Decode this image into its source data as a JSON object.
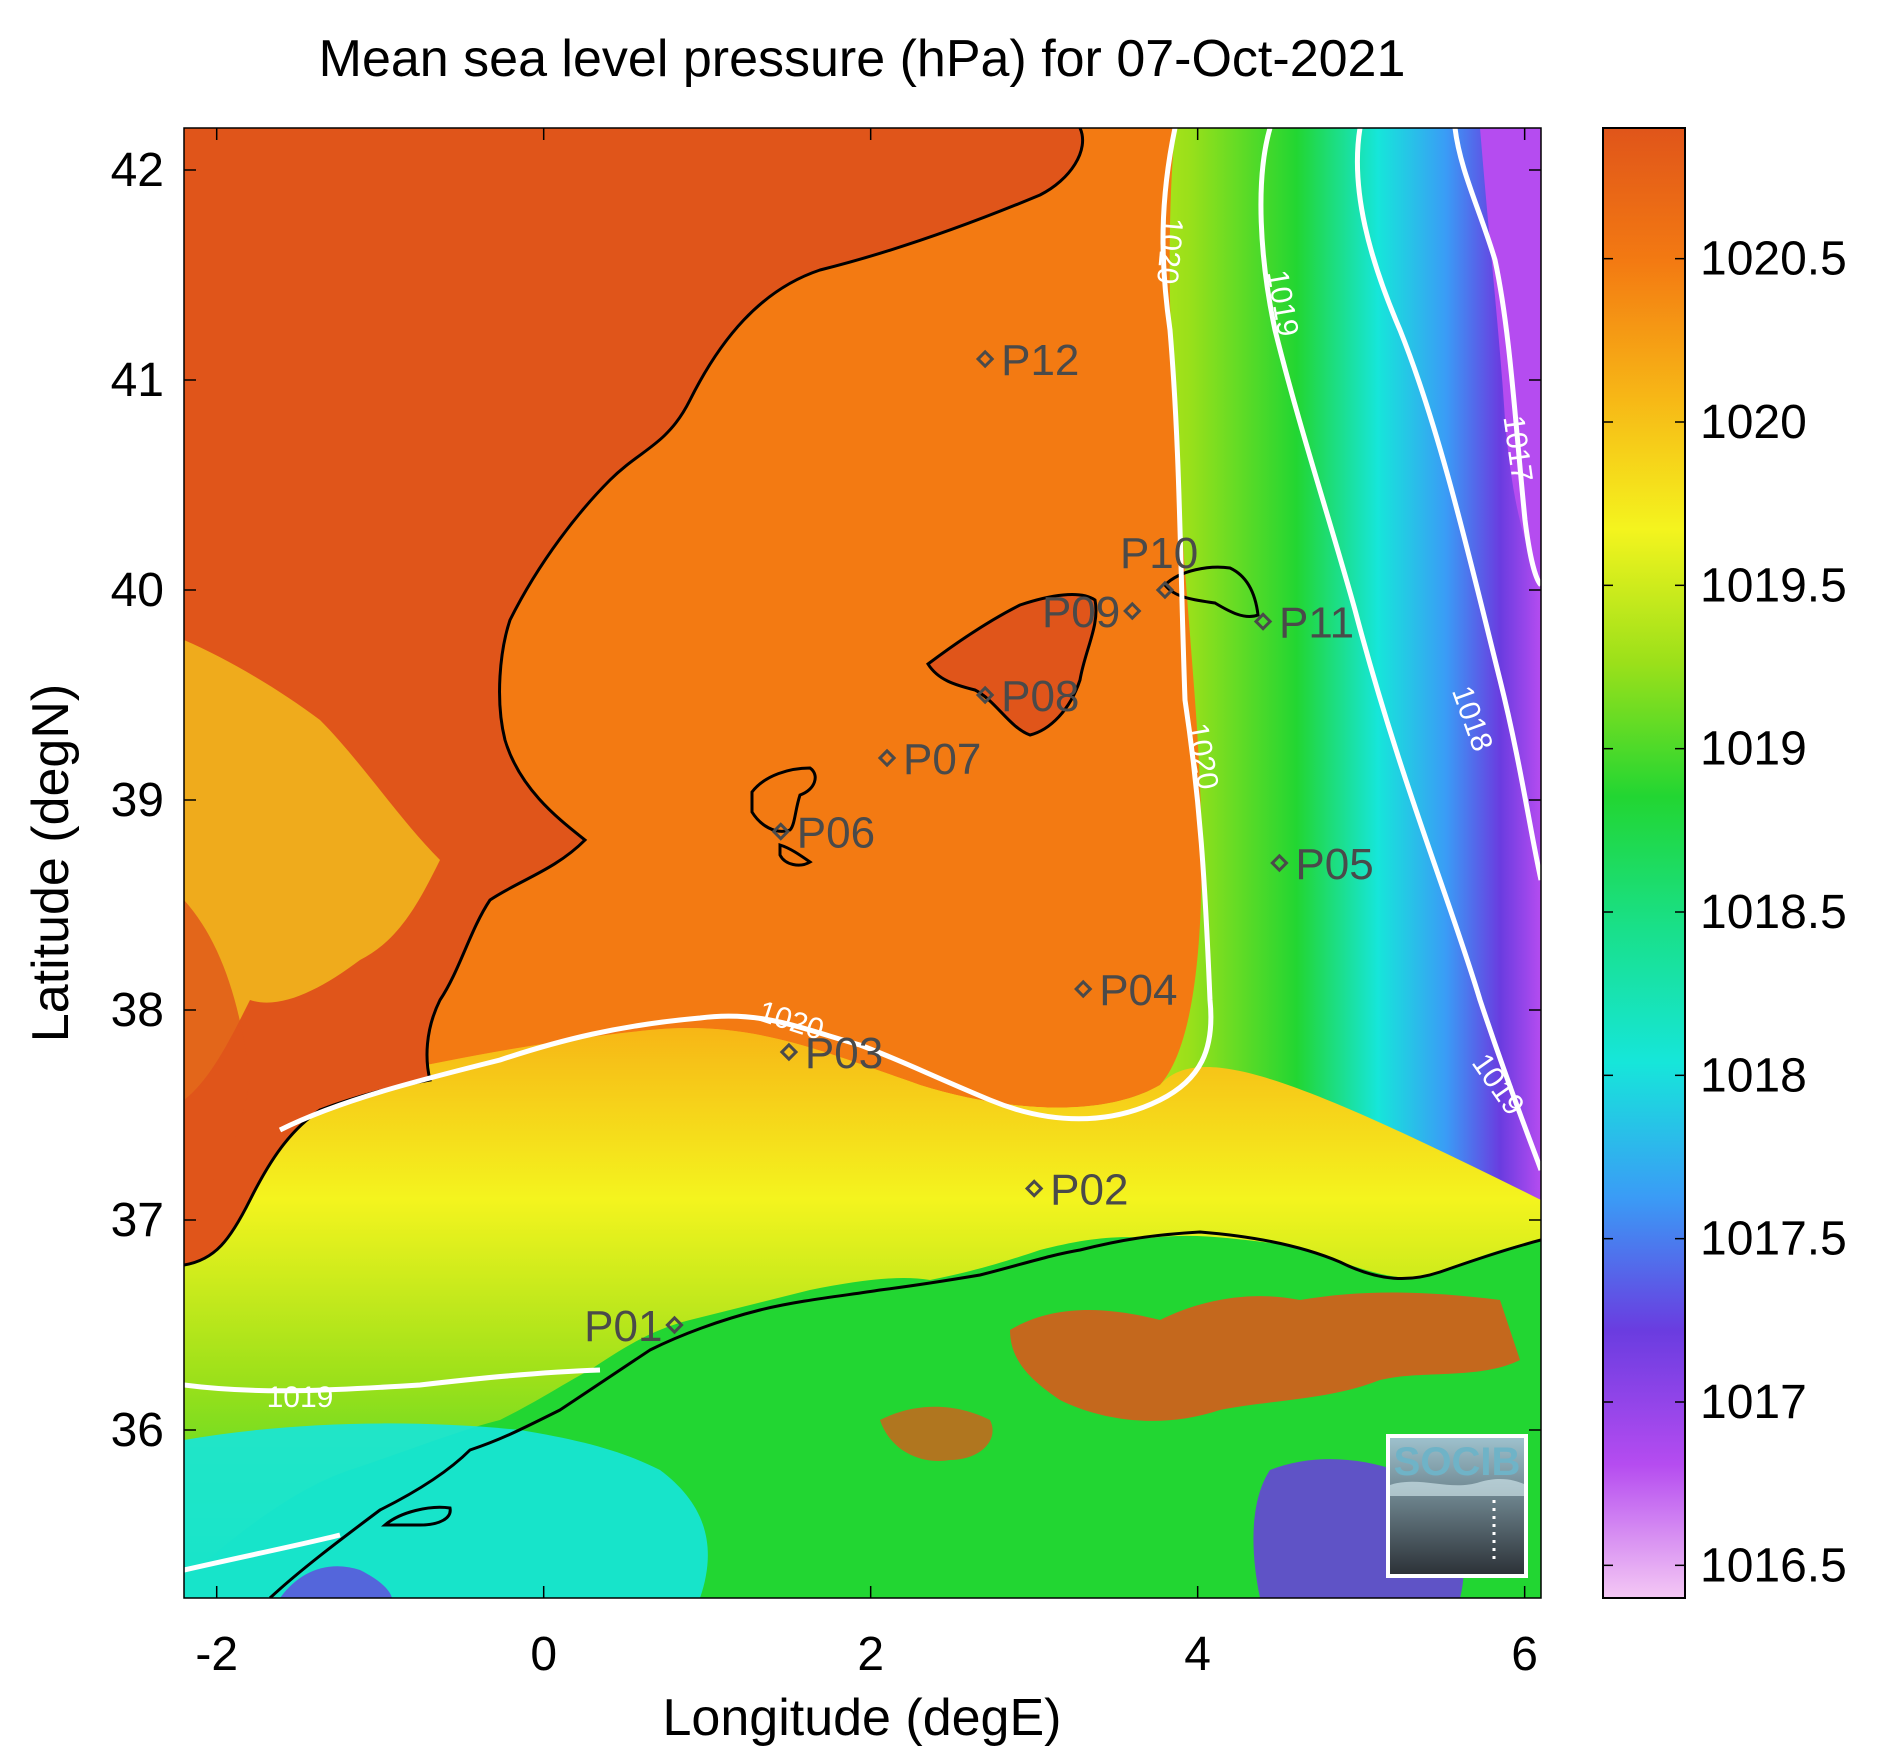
{
  "title": "Mean sea level pressure (hPa) for 07-Oct-2021",
  "xlabel": "Longitude (degE)",
  "ylabel": "Latitude (degN)",
  "x_ticks": [
    "-2",
    "0",
    "2",
    "4",
    "6"
  ],
  "y_ticks": [
    "36",
    "37",
    "38",
    "39",
    "40",
    "41",
    "42"
  ],
  "colorbar": {
    "ticks": [
      "1016.5",
      "1017",
      "1017.5",
      "1018",
      "1018.5",
      "1019",
      "1019.5",
      "1020",
      "1020.5"
    ],
    "range": [
      1016.4,
      1020.9
    ],
    "colors": [
      "#f4c8f4",
      "#b54cf0",
      "#6a3ce0",
      "#3a9cf6",
      "#16e6da",
      "#19e08a",
      "#22d632",
      "#9be01a",
      "#f4f41e",
      "#f7b616",
      "#f37a12",
      "#e0551a"
    ]
  },
  "axes": {
    "xlim": [
      -2.2,
      6.1
    ],
    "ylim": [
      35.2,
      42.2
    ]
  },
  "contours": [
    {
      "label": "1020"
    },
    {
      "label": "1019"
    },
    {
      "label": "1018"
    },
    {
      "label": "1017"
    }
  ],
  "points": [
    {
      "id": "P01",
      "lon": 0.8,
      "lat": 36.5
    },
    {
      "id": "P02",
      "lon": 3.0,
      "lat": 37.15
    },
    {
      "id": "P03",
      "lon": 1.5,
      "lat": 37.8
    },
    {
      "id": "P04",
      "lon": 3.3,
      "lat": 38.1
    },
    {
      "id": "P05",
      "lon": 4.5,
      "lat": 38.7
    },
    {
      "id": "P06",
      "lon": 1.45,
      "lat": 38.85
    },
    {
      "id": "P07",
      "lon": 2.1,
      "lat": 39.2
    },
    {
      "id": "P08",
      "lon": 2.7,
      "lat": 39.5
    },
    {
      "id": "P09",
      "lon": 3.6,
      "lat": 39.9
    },
    {
      "id": "P10",
      "lon": 3.8,
      "lat": 40.0
    },
    {
      "id": "P11",
      "lon": 4.4,
      "lat": 39.85
    },
    {
      "id": "P12",
      "lon": 2.7,
      "lat": 41.1
    }
  ],
  "logo": {
    "text": "SOCIB"
  }
}
